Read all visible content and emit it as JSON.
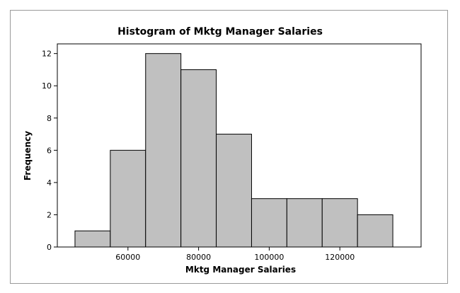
{
  "chart_data": {
    "type": "bar",
    "subtype": "histogram",
    "title": "Histogram of Mktg Manager Salaries",
    "xlabel": "Mktg Manager Salaries",
    "ylabel": "Frequency",
    "bins": [
      {
        "from": 45000,
        "to": 55000,
        "count": 1
      },
      {
        "from": 55000,
        "to": 65000,
        "count": 6
      },
      {
        "from": 65000,
        "to": 75000,
        "count": 12
      },
      {
        "from": 75000,
        "to": 85000,
        "count": 11
      },
      {
        "from": 85000,
        "to": 95000,
        "count": 7
      },
      {
        "from": 95000,
        "to": 105000,
        "count": 3
      },
      {
        "from": 105000,
        "to": 115000,
        "count": 3
      },
      {
        "from": 115000,
        "to": 125000,
        "count": 3
      },
      {
        "from": 125000,
        "to": 135000,
        "count": 2
      }
    ],
    "xlim": [
      40000,
      143000
    ],
    "ylim": [
      0,
      12.6
    ],
    "xticks": [
      60000,
      80000,
      100000,
      120000
    ],
    "yticks": [
      0,
      2,
      4,
      6,
      8,
      10,
      12
    ],
    "grid": false,
    "bar_color": "#c0c0c0",
    "edge_color": "#000000"
  }
}
